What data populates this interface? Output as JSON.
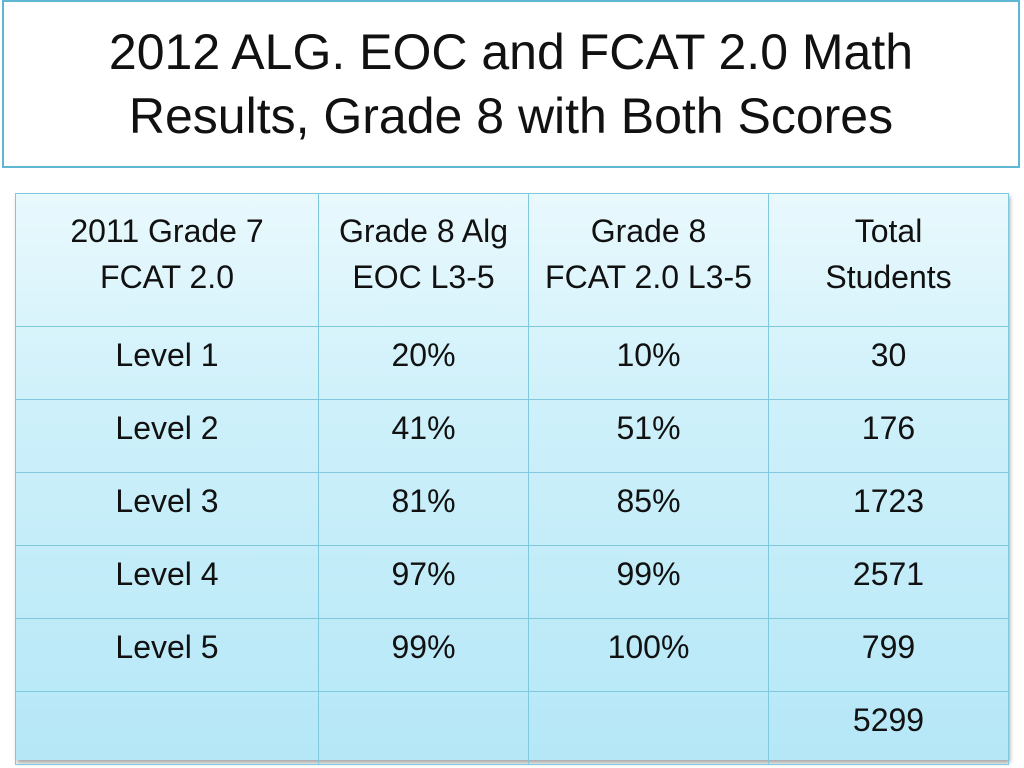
{
  "title": {
    "line1": "2012 ALG. EOC and FCAT 2.0 Math",
    "line2": "Results, Grade 8 with Both Scores"
  },
  "table": {
    "headers": [
      {
        "line1": "2011 Grade 7",
        "line2": "FCAT 2.0"
      },
      {
        "line1": "Grade 8 Alg",
        "line2": "EOC L3-5"
      },
      {
        "line1": "Grade 8",
        "line2": "FCAT 2.0 L3-5"
      },
      {
        "line1": "Total",
        "line2": "Students"
      }
    ],
    "rows": [
      [
        "Level 1",
        "20%",
        "10%",
        "30"
      ],
      [
        "Level 2",
        "41%",
        "51%",
        "176"
      ],
      [
        "Level 3",
        "81%",
        "85%",
        "1723"
      ],
      [
        "Level 4",
        "97%",
        "99%",
        "2571"
      ],
      [
        "Level 5",
        "99%",
        "100%",
        "799"
      ],
      [
        "",
        "",
        "",
        "5299"
      ]
    ]
  },
  "colors": {
    "title_border": "#5fb7d1",
    "grid_line": "#7fc8de",
    "cell_top": "#e9f9fd",
    "cell_bottom": "#b5e7f7"
  }
}
